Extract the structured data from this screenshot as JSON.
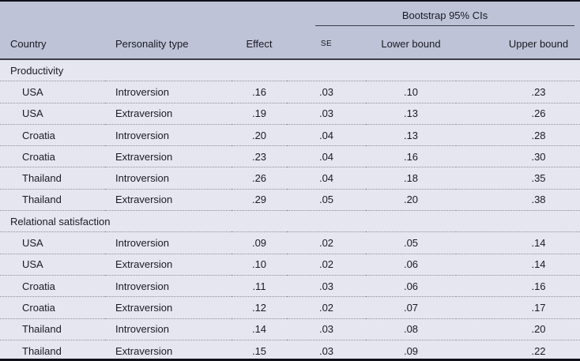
{
  "colors": {
    "header_background": "#bec3d7",
    "body_background": "#e5e6ef",
    "text": "#1a1a22",
    "header_rule": "#3c3c46",
    "outer_border": "#101018",
    "row_separator_dotted": "#8f8f99"
  },
  "table": {
    "spanner_label": "Bootstrap 95% CIs",
    "columns": [
      "Country",
      "Personality type",
      "Effect",
      "SE",
      "Lower bound",
      "Upper bound"
    ],
    "sections": [
      {
        "label": "Productivity",
        "rows": [
          {
            "country": "USA",
            "personality": "Introversion",
            "effect": ".16",
            "se": ".03",
            "lower": ".10",
            "upper": ".23"
          },
          {
            "country": "USA",
            "personality": "Extraversion",
            "effect": ".19",
            "se": ".03",
            "lower": ".13",
            "upper": ".26"
          },
          {
            "country": "Croatia",
            "personality": "Introversion",
            "effect": ".20",
            "se": ".04",
            "lower": ".13",
            "upper": ".28"
          },
          {
            "country": "Croatia",
            "personality": "Extraversion",
            "effect": ".23",
            "se": ".04",
            "lower": ".16",
            "upper": ".30"
          },
          {
            "country": "Thailand",
            "personality": "Introversion",
            "effect": ".26",
            "se": ".04",
            "lower": ".18",
            "upper": ".35"
          },
          {
            "country": "Thailand",
            "personality": "Extraversion",
            "effect": ".29",
            "se": ".05",
            "lower": ".20",
            "upper": ".38"
          }
        ]
      },
      {
        "label": "Relational satisfaction",
        "rows": [
          {
            "country": "USA",
            "personality": "Introversion",
            "effect": ".09",
            "se": ".02",
            "lower": ".05",
            "upper": ".14"
          },
          {
            "country": "USA",
            "personality": "Extraversion",
            "effect": ".10",
            "se": ".02",
            "lower": ".06",
            "upper": ".14"
          },
          {
            "country": "Croatia",
            "personality": "Introversion",
            "effect": ".11",
            "se": ".03",
            "lower": ".06",
            "upper": ".16"
          },
          {
            "country": "Croatia",
            "personality": "Extraversion",
            "effect": ".12",
            "se": ".02",
            "lower": ".07",
            "upper": ".17"
          },
          {
            "country": "Thailand",
            "personality": "Introversion",
            "effect": ".14",
            "se": ".03",
            "lower": ".08",
            "upper": ".20"
          },
          {
            "country": "Thailand",
            "personality": "Extraversion",
            "effect": ".15",
            "se": ".03",
            "lower": ".09",
            "upper": ".22"
          }
        ]
      }
    ]
  }
}
